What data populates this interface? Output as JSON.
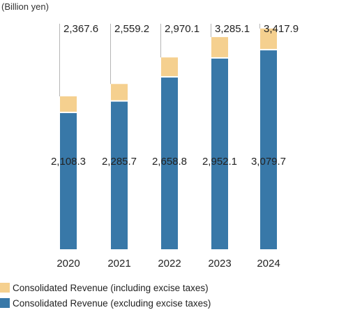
{
  "chart_data": {
    "type": "bar",
    "stacked": true,
    "unit_label": "(Billion yen)",
    "categories": [
      "2020",
      "2021",
      "2022",
      "2023",
      "2024"
    ],
    "series": [
      {
        "name": "Consolidated Revenue (excluding excise taxes)",
        "color": "#3878a8",
        "values": [
          2108.3,
          2285.7,
          2658.8,
          2952.1,
          3079.7
        ],
        "labels": [
          "2,108.3",
          "2,285.7",
          "2,658.8",
          "2,952.1",
          "3,079.7"
        ]
      },
      {
        "name": "Consolidated Revenue (including excise taxes)",
        "color": "#f5d08f",
        "totals": [
          2367.6,
          2559.2,
          2970.1,
          3285.1,
          3417.9
        ],
        "labels": [
          "2,367.6",
          "2,559.2",
          "2,970.1",
          "3,285.1",
          "3,417.9"
        ]
      }
    ],
    "legend": {
      "placement": "bottom-left",
      "entries": [
        {
          "label": "Consolidated Revenue (including excise taxes)",
          "color": "#f5d08f"
        },
        {
          "label": "Consolidated Revenue (excluding excise taxes)",
          "color": "#3878a8"
        }
      ]
    },
    "grid": false
  }
}
